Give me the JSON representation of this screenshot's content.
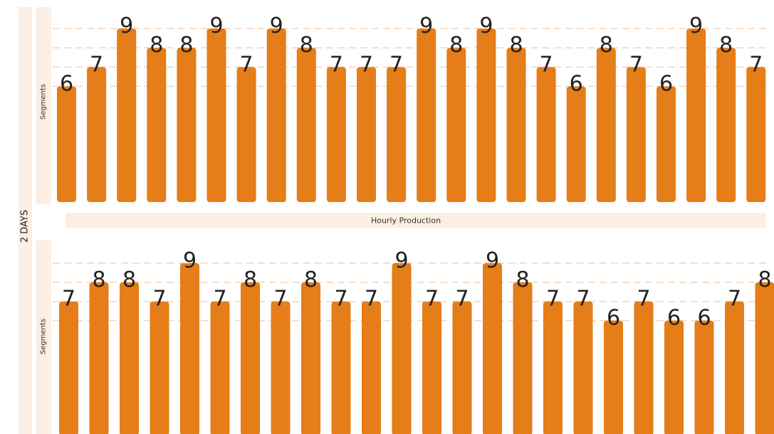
{
  "side_label": "2 DAYS",
  "panel_label": "Hourly Production",
  "chart_data": [
    {
      "type": "bar",
      "ylabel": "Segments",
      "xlabel": "Hourly Production",
      "values": [
        6,
        7,
        9,
        8,
        8,
        9,
        7,
        9,
        8,
        7,
        7,
        7,
        9,
        8,
        9,
        8,
        7,
        6,
        8,
        7,
        6,
        9,
        8,
        7
      ],
      "ylim": [
        0,
        9
      ],
      "grid": true,
      "color": "#e57d18"
    },
    {
      "type": "bar",
      "ylabel": "Segments",
      "values": [
        7,
        8,
        8,
        7,
        9,
        7,
        8,
        7,
        8,
        7,
        7,
        9,
        7,
        7,
        9,
        8,
        7,
        7,
        6,
        7,
        6,
        6,
        7,
        8
      ],
      "ylim": [
        0,
        9
      ],
      "grid": true,
      "color": "#e57d18"
    }
  ]
}
